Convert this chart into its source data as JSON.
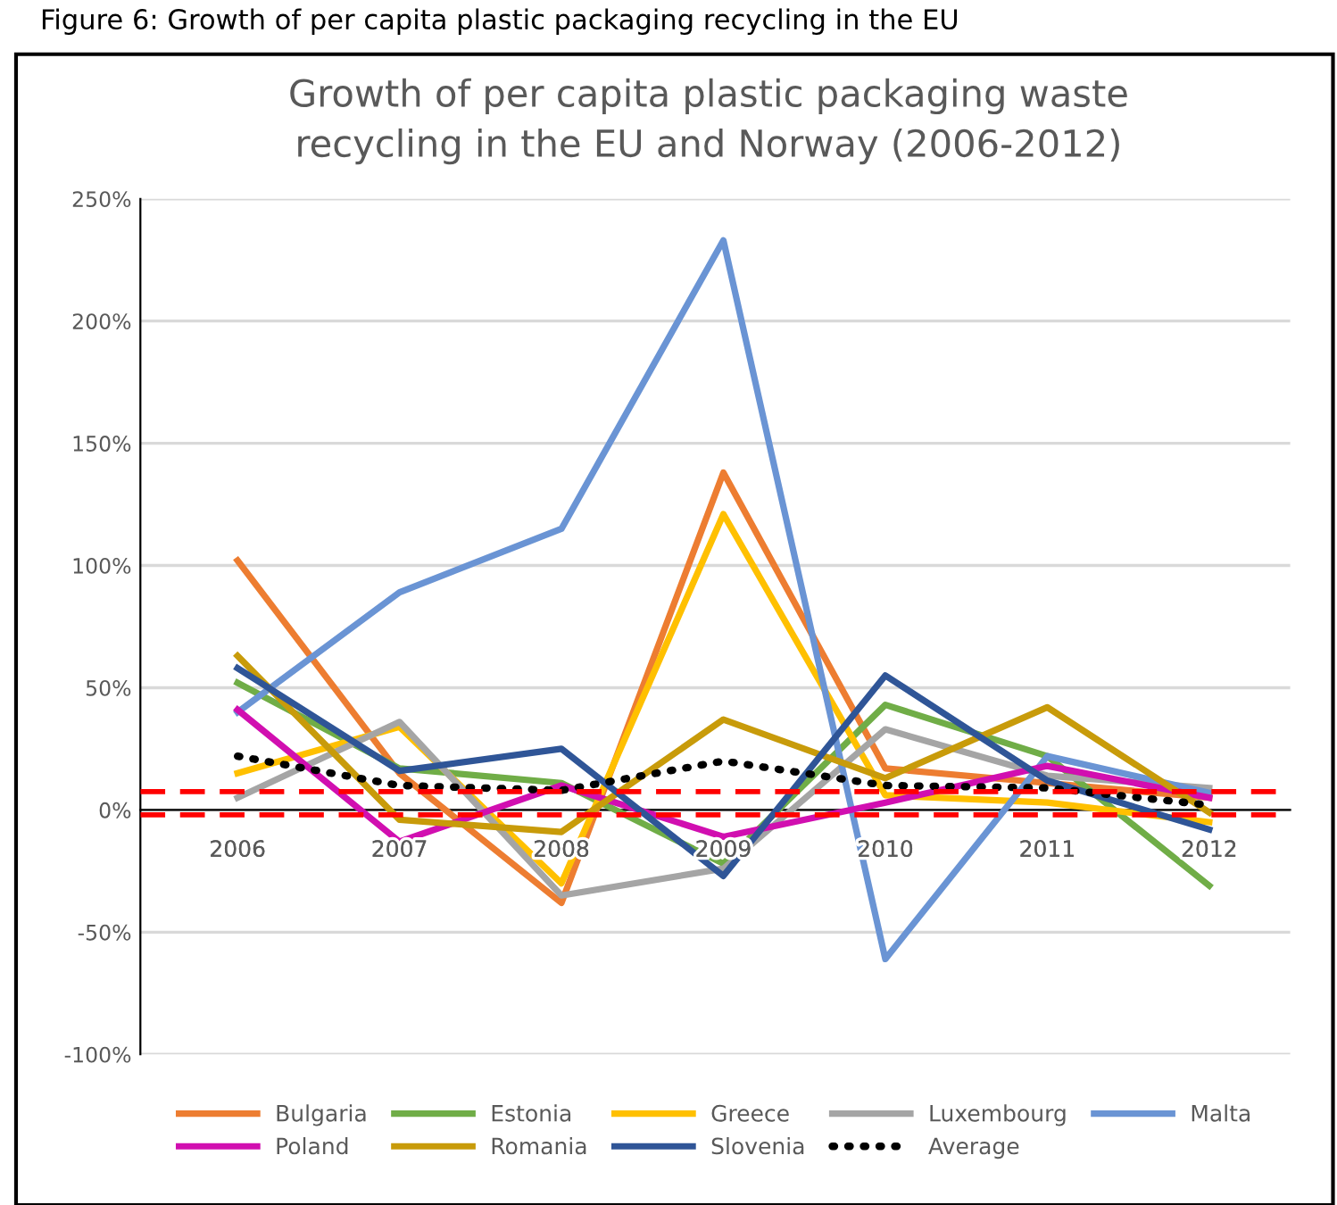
{
  "chart_data": {
    "type": "line",
    "title": "Growth of per capita plastic packaging waste\nrecycling in the EU and Norway (2006-2012)",
    "annotations": [
      "Figure 6: Growth of per capita plastic packaging recycling in the EU"
    ],
    "categories": [
      "2006",
      "2007",
      "2008",
      "2009",
      "2010",
      "2011",
      "2012"
    ],
    "series": [
      {
        "name": "Bulgaria",
        "color": "#ed7d31",
        "values": [
          102,
          15,
          -38,
          138,
          17,
          11,
          5
        ]
      },
      {
        "name": "Estonia",
        "color": "#70ad47",
        "values": [
          52,
          17,
          11,
          -22,
          43,
          22,
          -31
        ]
      },
      {
        "name": "Greece",
        "color": "#ffc000",
        "values": [
          15,
          34,
          -30,
          121,
          6,
          3,
          -5
        ]
      },
      {
        "name": "Luxembourg",
        "color": "#a5a5a5",
        "values": [
          5,
          36,
          -35,
          -24,
          33,
          14,
          9
        ]
      },
      {
        "name": "Malta",
        "color": "#6a94d4",
        "values": [
          40,
          89,
          115,
          233,
          -61,
          22,
          7
        ]
      },
      {
        "name": "Poland",
        "color": "#d10fb0",
        "values": [
          41,
          -13,
          10,
          -11,
          3,
          18,
          5
        ]
      },
      {
        "name": "Romania",
        "color": "#c89b0a",
        "values": [
          63,
          -4,
          -9,
          37,
          13,
          42,
          -1
        ]
      },
      {
        "name": "Slovenia",
        "color": "#2f5597",
        "values": [
          58,
          16,
          25,
          -27,
          55,
          12,
          -8
        ]
      },
      {
        "name": "Average",
        "color": "#000000",
        "line_style": "dotted",
        "values": [
          22,
          10,
          8,
          20,
          10,
          9,
          2
        ]
      }
    ],
    "ylim": [
      -100,
      250
    ],
    "yticks": [
      {
        "value": -100,
        "label": "-100%"
      },
      {
        "value": -50,
        "label": "-50%"
      },
      {
        "value": 0,
        "label": "0%"
      },
      {
        "value": 50,
        "label": "50%"
      },
      {
        "value": 100,
        "label": "100%"
      },
      {
        "value": 150,
        "label": "150%"
      },
      {
        "value": 200,
        "label": "200%"
      },
      {
        "value": 250,
        "label": "250%"
      }
    ],
    "ref_lines": [
      {
        "axis": "y",
        "value": 7.5,
        "color": "#ff0000",
        "line_style": "dashed"
      },
      {
        "axis": "y",
        "value": -2,
        "color": "#ff0000",
        "line_style": "dashed"
      }
    ],
    "grid": "y",
    "legend": "bottom",
    "marker": "none",
    "line_style": "solid"
  }
}
